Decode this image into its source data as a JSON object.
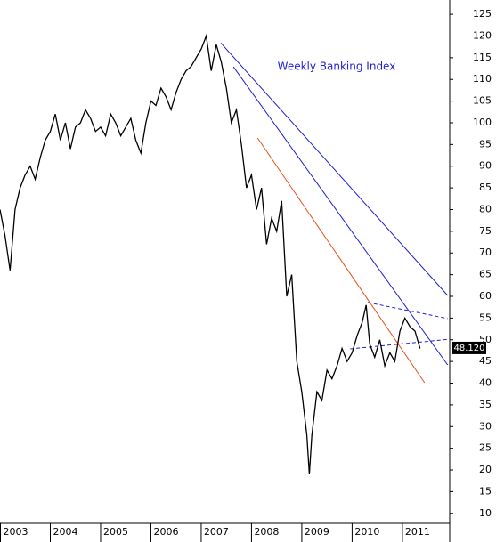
{
  "chart_data": {
    "type": "line",
    "annotation": "Weekly Banking Index",
    "annotation_color": "#1f1fd0",
    "xlim": [
      2003,
      2011.94
    ],
    "xticks": [
      2003,
      2004,
      2005,
      2006,
      2007,
      2008,
      2009,
      2010,
      2011
    ],
    "ylim": [
      7.7,
      128.3
    ],
    "yticks": [
      10,
      15,
      20,
      25,
      30,
      35,
      40,
      45,
      50,
      55,
      60,
      65,
      70,
      75,
      80,
      85,
      90,
      95,
      100,
      105,
      110,
      115,
      120,
      125
    ],
    "y_axis_side": "right",
    "grid": false,
    "series": [
      {
        "color": "#000000",
        "x": [
          2003.0,
          2003.1,
          2003.2,
          2003.3,
          2003.4,
          2003.5,
          2003.6,
          2003.7,
          2003.8,
          2003.9,
          2004.0,
          2004.1,
          2004.2,
          2004.3,
          2004.4,
          2004.5,
          2004.6,
          2004.7,
          2004.8,
          2004.9,
          2005.0,
          2005.1,
          2005.2,
          2005.3,
          2005.4,
          2005.5,
          2005.6,
          2005.7,
          2005.8,
          2005.9,
          2006.0,
          2006.1,
          2006.2,
          2006.3,
          2006.4,
          2006.5,
          2006.6,
          2006.7,
          2006.8,
          2006.9,
          2007.0,
          2007.1,
          2007.2,
          2007.3,
          2007.4,
          2007.5,
          2007.6,
          2007.7,
          2007.8,
          2007.9,
          2008.0,
          2008.1,
          2008.2,
          2008.3,
          2008.4,
          2008.5,
          2008.6,
          2008.7,
          2008.8,
          2008.9,
          2009.0,
          2009.1,
          2009.15,
          2009.2,
          2009.3,
          2009.4,
          2009.5,
          2009.6,
          2009.7,
          2009.8,
          2009.9,
          2010.0,
          2010.1,
          2010.2,
          2010.28,
          2010.35,
          2010.45,
          2010.55,
          2010.65,
          2010.75,
          2010.85,
          2010.95,
          2011.05,
          2011.15,
          2011.25,
          2011.35
        ],
        "values": [
          80,
          74,
          66,
          80,
          85,
          88,
          90,
          87,
          92,
          96,
          98,
          102,
          96,
          100,
          94,
          99,
          100,
          103,
          101,
          98,
          99,
          97,
          102,
          100,
          97,
          99,
          101,
          96,
          93,
          100,
          105,
          104,
          108,
          106,
          103,
          107,
          110,
          112,
          113,
          115,
          117,
          120,
          112,
          118,
          114,
          108,
          100,
          103,
          95,
          85,
          88,
          80,
          85,
          72,
          78,
          75,
          82,
          60,
          65,
          45,
          38,
          28,
          19,
          28,
          38,
          36,
          43,
          41,
          44,
          48,
          45,
          47,
          51,
          54,
          58,
          49,
          46,
          50,
          44,
          47,
          45,
          52,
          55,
          53,
          52,
          48
        ]
      }
    ],
    "trendlines": [
      {
        "color": "#1f1fd0",
        "dashed": false,
        "x": [
          2007.39,
          2011.9
        ],
        "values": [
          118.4,
          60.2
        ]
      },
      {
        "color": "#1f1fd0",
        "dashed": false,
        "x": [
          2007.64,
          2011.9
        ],
        "values": [
          112.9,
          44.2
        ]
      },
      {
        "color": "#e8501c",
        "dashed": false,
        "x": [
          2008.12,
          2011.44
        ],
        "values": [
          96.5,
          40.1
        ]
      },
      {
        "color": "#1f1fd0",
        "dashed": true,
        "x": [
          2010.31,
          2011.9
        ],
        "values": [
          58.6,
          54.9
        ]
      },
      {
        "color": "#1f1fd0",
        "dashed": true,
        "x": [
          2009.96,
          2011.9
        ],
        "values": [
          47.9,
          50.1
        ]
      }
    ],
    "last_value": {
      "value": 48.12,
      "label": "48.120"
    }
  }
}
